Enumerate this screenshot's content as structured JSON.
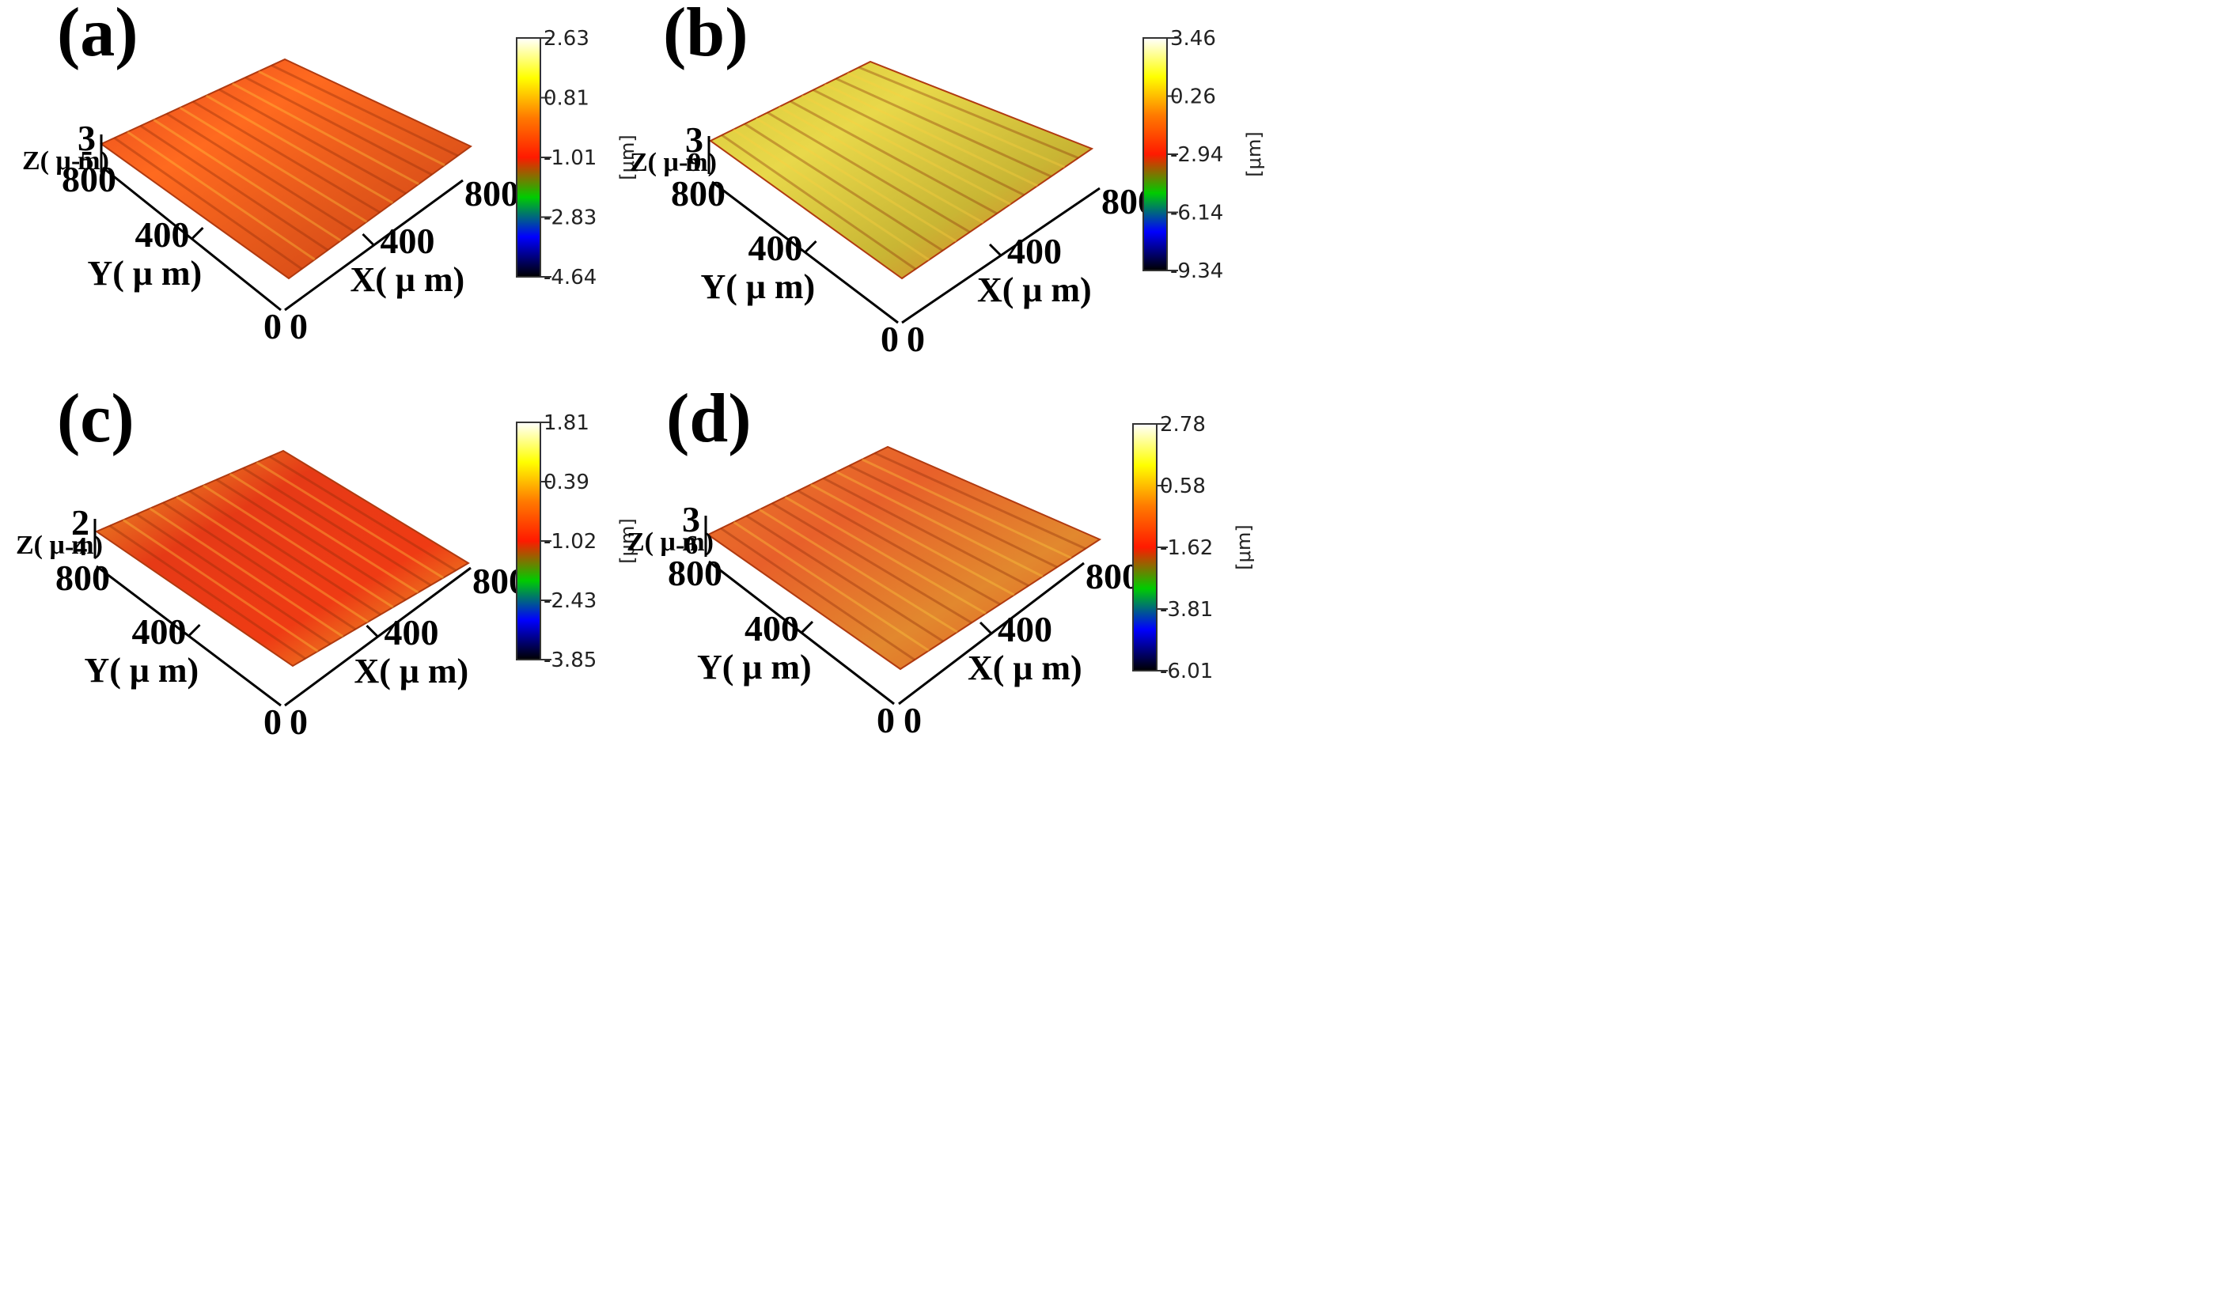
{
  "colorbar_colors": [
    "#000000",
    "#0000ff",
    "#00cc00",
    "#ff1a00",
    "#ff7a00",
    "#ffff00",
    "#ffffff"
  ],
  "panels": [
    {
      "label": "(a)",
      "z_title": "Z( μ m)",
      "z_top": "3",
      "z_bottom": "-5",
      "y_title": "Y( μ m)",
      "x_title": "X( μ m)",
      "y_max": "800",
      "y_mid": "400",
      "x_max": "800",
      "x_mid": "400",
      "origin_y": "0",
      "origin_x": "0",
      "colorbar_ticks": [
        "2.63",
        "0.81",
        "-1.01",
        "-2.83",
        "-4.64"
      ],
      "colorbar_unit": "[μm]",
      "surface_colors": [
        "#e64a1e",
        "#ff6a1f",
        "#e2561a",
        "#cf3e14"
      ]
    },
    {
      "label": "(b)",
      "z_title": "Z( μ m)",
      "z_top": "3",
      "z_bottom": "-9",
      "y_title": "Y( μ m)",
      "x_title": "X( μ m)",
      "y_max": "800",
      "y_mid": "400",
      "x_max": "800",
      "x_mid": "400",
      "origin_y": "0",
      "origin_x": "0",
      "colorbar_ticks": [
        "3.46",
        "0.26",
        "-2.94",
        "-6.14",
        "-9.34"
      ],
      "colorbar_unit": "[μm]",
      "surface_colors": [
        "#d9c93a",
        "#e8d84a",
        "#c9b634",
        "#e06a22"
      ]
    },
    {
      "label": "(c)",
      "z_title": "Z( μ m)",
      "z_top": "2",
      "z_bottom": "-4",
      "y_title": "Y( μ m)",
      "x_title": "X( μ m)",
      "y_max": "800",
      "y_mid": "400",
      "x_max": "800",
      "x_mid": "400",
      "origin_y": "0",
      "origin_x": "0",
      "colorbar_ticks": [
        "1.81",
        "0.39",
        "-1.02",
        "-2.43",
        "-3.85"
      ],
      "colorbar_unit": "[μm]",
      "surface_colors": [
        "#e8a62a",
        "#e63a16",
        "#ef3b14",
        "#e6c02e"
      ]
    },
    {
      "label": "(d)",
      "z_title": "Z( μ m)",
      "z_top": "3",
      "z_bottom": "-6",
      "y_title": "Y( μ m)",
      "x_title": "X( μ m)",
      "y_max": "800",
      "y_mid": "400",
      "x_max": "800",
      "x_mid": "400",
      "origin_y": "0",
      "origin_x": "0",
      "colorbar_ticks": [
        "2.78",
        "0.58",
        "-1.62",
        "-3.81",
        "-6.01"
      ],
      "colorbar_unit": "[μm]",
      "surface_colors": [
        "#e8782a",
        "#e8602a",
        "#e2882e",
        "#e05522"
      ]
    }
  ]
}
